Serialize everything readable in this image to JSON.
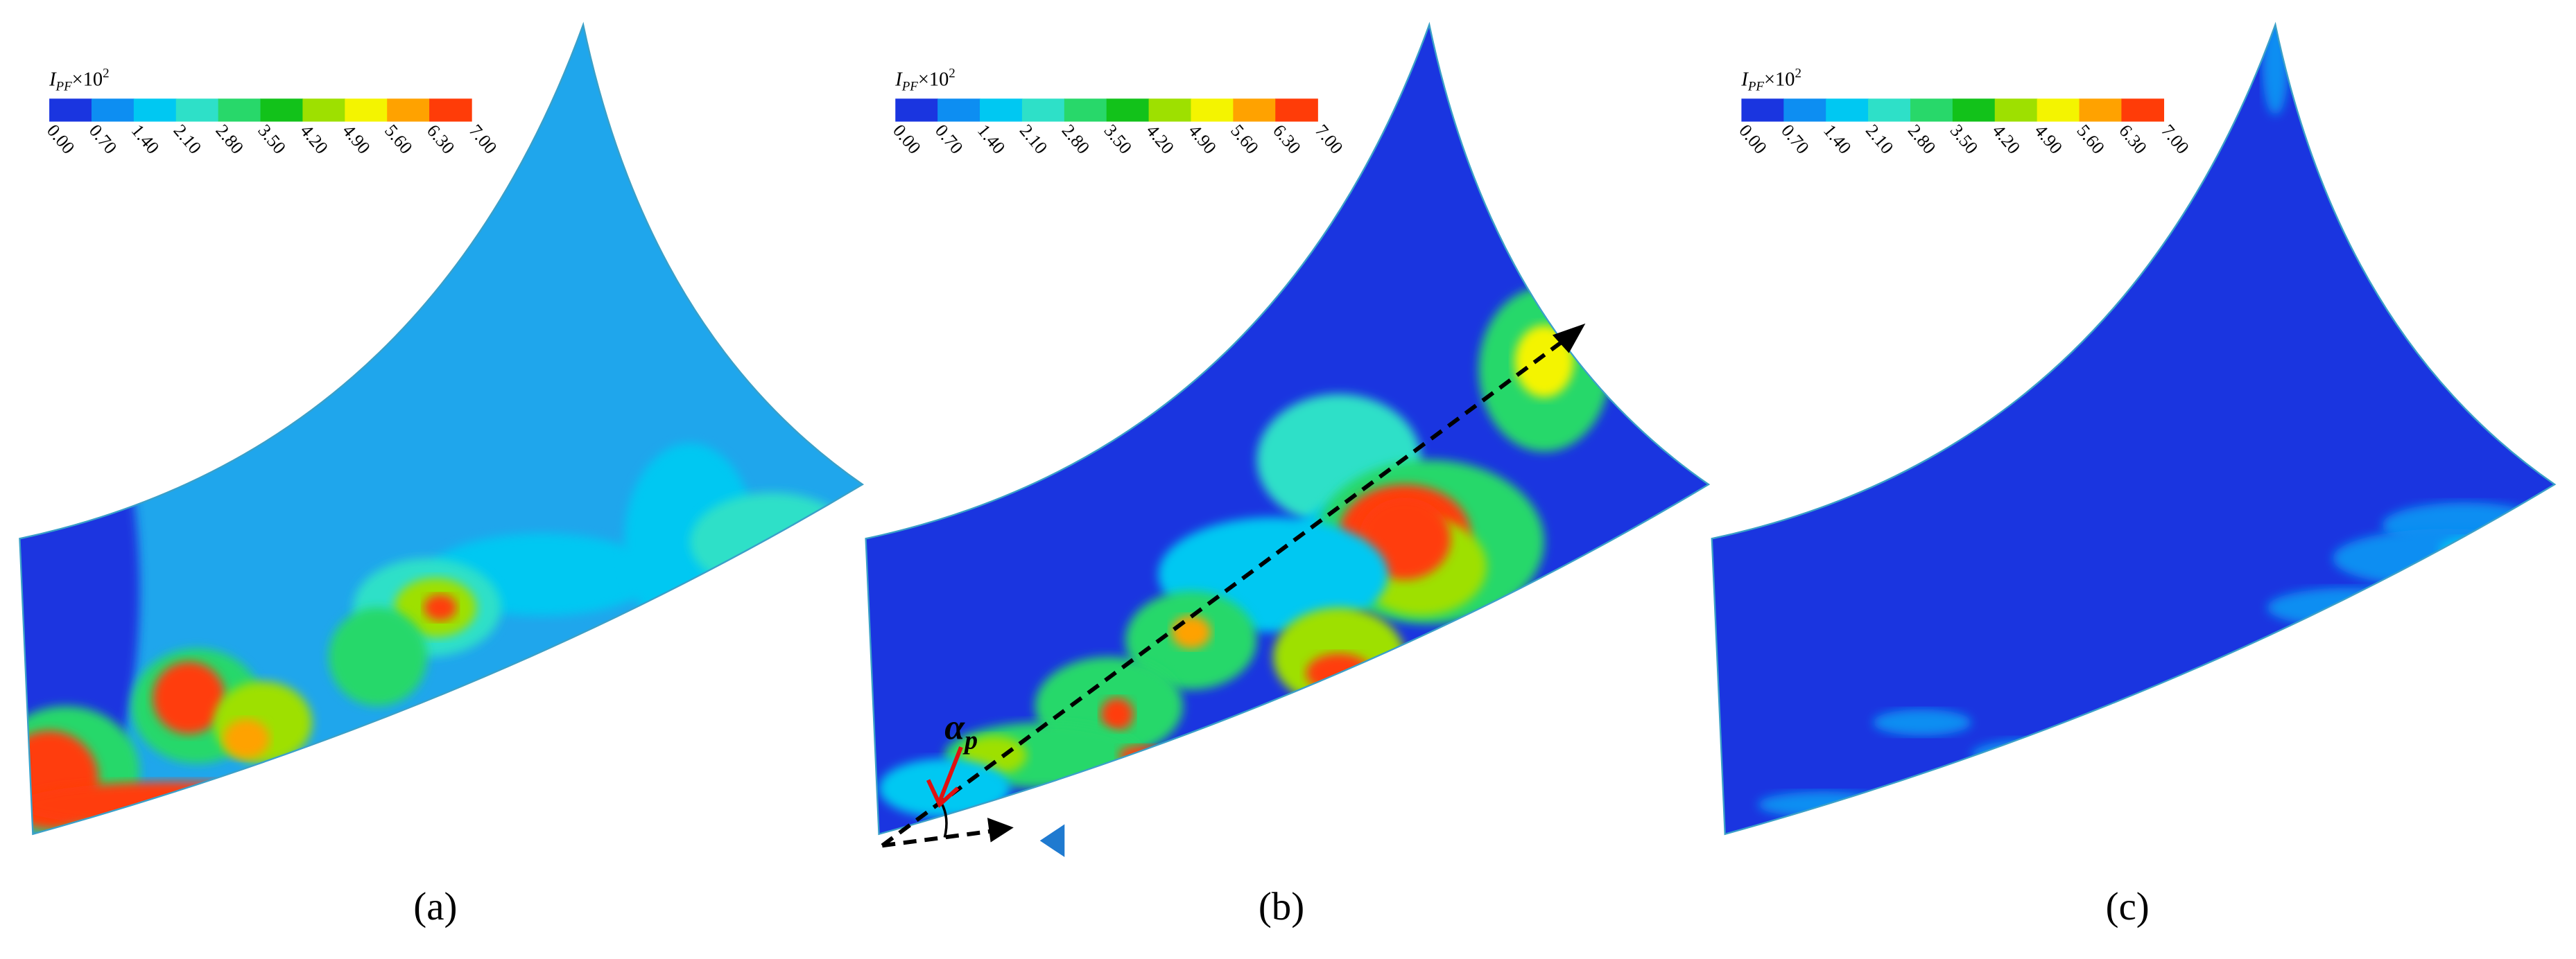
{
  "panels": [
    {
      "label": "(a)",
      "colorbar": {
        "title": {
          "symbol": "I",
          "subscript": "PF",
          "multiplier": "×10",
          "exponent": "2"
        },
        "ticks": [
          "0.00",
          "0.70",
          "1.40",
          "2.10",
          "2.80",
          "3.50",
          "4.20",
          "4.90",
          "5.60",
          "6.30",
          "7.00"
        ]
      }
    },
    {
      "label": "(b)",
      "colorbar": {
        "title": {
          "symbol": "I",
          "subscript": "PF",
          "multiplier": "×10",
          "exponent": "2"
        },
        "ticks": [
          "0.00",
          "0.70",
          "1.40",
          "2.10",
          "2.80",
          "3.50",
          "4.20",
          "4.90",
          "5.60",
          "6.30",
          "7.00"
        ]
      }
    },
    {
      "label": "(c)",
      "colorbar": {
        "title": {
          "symbol": "I",
          "subscript": "PF",
          "multiplier": "×10",
          "exponent": "2"
        },
        "ticks": [
          "0.00",
          "0.70",
          "1.40",
          "2.10",
          "2.80",
          "3.50",
          "4.20",
          "4.90",
          "5.60",
          "6.30",
          "7.00"
        ]
      }
    }
  ],
  "annotation": {
    "symbol": "α",
    "subscript": "p"
  }
}
